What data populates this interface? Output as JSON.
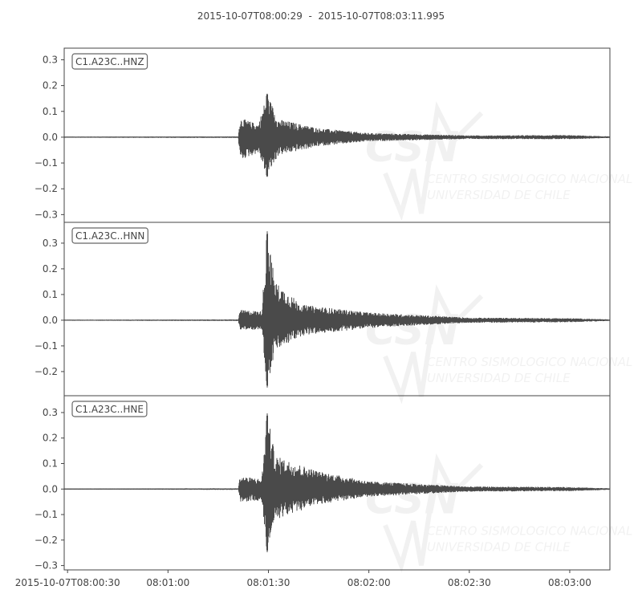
{
  "chart_data": {
    "type": "line",
    "title": "2015-10-07T08:00:29  -  2015-10-07T08:03:11.995",
    "xlabel": "",
    "ylabel": "",
    "x_range": [
      "2015-10-07T08:00:29",
      "2015-10-07T08:03:11.995"
    ],
    "x_ticks": [
      "2015-10-07T08:00:30",
      "08:01:00",
      "08:01:30",
      "08:02:00",
      "08:02:30",
      "08:03:00"
    ],
    "grid": false,
    "line_color": "#4a4a4a",
    "traces": [
      {
        "label": "C1.A23C..HNZ",
        "ylim": [
          -0.33,
          0.345
        ],
        "y_ticks": [
          "0.3",
          "0.2",
          "0.1",
          "0.0",
          "−0.1",
          "−0.2",
          "−0.3"
        ],
        "y_tick_values": [
          0.3,
          0.2,
          0.1,
          0.0,
          -0.1,
          -0.2,
          -0.3
        ],
        "envelope": [
          {
            "time": "08:00:29",
            "max": 0.002,
            "min": -0.002
          },
          {
            "time": "08:01:21",
            "max": 0.003,
            "min": -0.003
          },
          {
            "time": "08:01:21.5",
            "max": 0.075,
            "min": -0.09
          },
          {
            "time": "08:01:27",
            "max": 0.05,
            "min": -0.06
          },
          {
            "time": "08:01:29.6",
            "max": 0.17,
            "min": -0.155
          },
          {
            "time": "08:01:33",
            "max": 0.07,
            "min": -0.07
          },
          {
            "time": "08:01:45",
            "max": 0.035,
            "min": -0.035
          },
          {
            "time": "08:02:00",
            "max": 0.016,
            "min": -0.016
          },
          {
            "time": "08:02:30",
            "max": 0.007,
            "min": -0.007
          },
          {
            "time": "08:03:00",
            "max": 0.008,
            "min": -0.008
          },
          {
            "time": "08:03:11.995",
            "max": 0.003,
            "min": -0.003
          }
        ]
      },
      {
        "label": "C1.A23C..HNN",
        "ylim": [
          -0.294,
          0.381
        ],
        "y_ticks": [
          "0.3",
          "0.2",
          "0.1",
          "0.0",
          "−0.1",
          "−0.2"
        ],
        "y_tick_values": [
          0.3,
          0.2,
          0.1,
          0.0,
          -0.1,
          -0.2
        ],
        "envelope": [
          {
            "time": "08:00:29",
            "max": 0.002,
            "min": -0.002
          },
          {
            "time": "08:01:21",
            "max": 0.003,
            "min": -0.003
          },
          {
            "time": "08:01:21.5",
            "max": 0.04,
            "min": -0.04
          },
          {
            "time": "08:01:28",
            "max": 0.035,
            "min": -0.035
          },
          {
            "time": "08:01:29.6",
            "max": 0.35,
            "min": -0.265
          },
          {
            "time": "08:01:32",
            "max": 0.15,
            "min": -0.12
          },
          {
            "time": "08:01:40",
            "max": 0.06,
            "min": -0.06
          },
          {
            "time": "08:02:00",
            "max": 0.03,
            "min": -0.03
          },
          {
            "time": "08:02:30",
            "max": 0.01,
            "min": -0.01
          },
          {
            "time": "08:03:00",
            "max": 0.008,
            "min": -0.008
          },
          {
            "time": "08:03:11.995",
            "max": 0.003,
            "min": -0.003
          }
        ]
      },
      {
        "label": "C1.A23C..HNE",
        "ylim": [
          -0.317,
          0.366
        ],
        "y_ticks": [
          "0.3",
          "0.2",
          "0.1",
          "0.0",
          "−0.1",
          "−0.2",
          "−0.3"
        ],
        "y_tick_values": [
          0.3,
          0.2,
          0.1,
          0.0,
          -0.1,
          -0.2,
          -0.3
        ],
        "envelope": [
          {
            "time": "08:00:29",
            "max": 0.002,
            "min": -0.002
          },
          {
            "time": "08:01:21",
            "max": 0.003,
            "min": -0.003
          },
          {
            "time": "08:01:21.5",
            "max": 0.05,
            "min": -0.05
          },
          {
            "time": "08:01:28",
            "max": 0.04,
            "min": -0.045
          },
          {
            "time": "08:01:29.6",
            "max": 0.3,
            "min": -0.25
          },
          {
            "time": "08:01:32",
            "max": 0.13,
            "min": -0.12
          },
          {
            "time": "08:01:45",
            "max": 0.07,
            "min": -0.06
          },
          {
            "time": "08:02:00",
            "max": 0.03,
            "min": -0.03
          },
          {
            "time": "08:02:30",
            "max": 0.01,
            "min": -0.01
          },
          {
            "time": "08:03:00",
            "max": 0.008,
            "min": -0.008
          },
          {
            "time": "08:03:11.995",
            "max": 0.003,
            "min": -0.003
          }
        ]
      }
    ]
  },
  "watermark": {
    "logo_text": "CSN",
    "line1": "CENTRO SISMOLOGICO NACIONAL",
    "line2": "UNIVERSIDAD DE CHILE"
  }
}
